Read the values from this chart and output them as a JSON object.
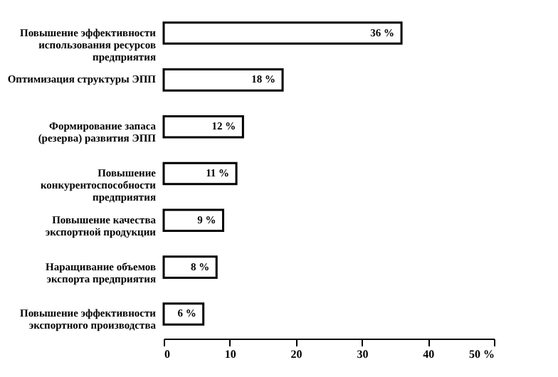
{
  "chart_data": {
    "type": "bar",
    "orientation": "horizontal",
    "categories": [
      "Повышение эффективности использования ресурсов предприятия",
      "Оптимизация структуры ЭПП",
      "Формирование запаса (резерва) развития ЭПП",
      "Повышение конкурентоспособности предприятия",
      "Повышение качества экспортной продукции",
      "Наращивание объемов экспорта предприятия",
      "Повышение эффективности экспортного производства"
    ],
    "values": [
      36,
      18,
      12,
      11,
      9,
      8,
      6
    ],
    "value_labels": [
      "36 %",
      "18 %",
      "12 %",
      "11 %",
      "9 %",
      "8 %",
      "6 %"
    ],
    "color": "#ffffff",
    "xlim": [
      0,
      50
    ],
    "xticks": [
      0,
      10,
      20,
      30,
      40,
      {
        "value": 50,
        "label": "50 %"
      }
    ],
    "grid": false
  }
}
